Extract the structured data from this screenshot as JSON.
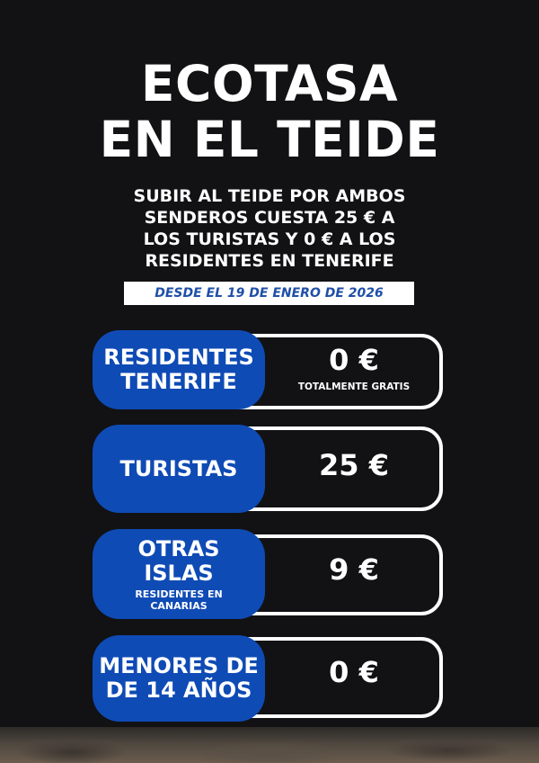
{
  "header": {
    "title_line1": "ECOTASA",
    "title_line2": "EN EL TEIDE",
    "subtitle_lines": [
      "SUBIR AL TEIDE POR AMBOS",
      "SENDEROS CUESTA 25 € A",
      "LOS TURISTAS Y 0 € A LOS",
      "RESIDENTES EN TENERIFE"
    ],
    "date": "DESDE EL 19 DE ENERO DE 2026"
  },
  "rates": [
    {
      "label_lines": [
        "RESIDENTES",
        "TENERIFE"
      ],
      "sublabel": "",
      "price": "0 €",
      "note": "TOTALMENTE GRATIS"
    },
    {
      "label_lines": [
        "TURISTAS"
      ],
      "sublabel": "",
      "price": "25 €",
      "note": ""
    },
    {
      "label_lines": [
        "OTRAS",
        "ISLAS"
      ],
      "sublabel_lines": [
        "RESIDENTES EN",
        "CANARIAS"
      ],
      "price": "9 €",
      "note": ""
    },
    {
      "label_lines": [
        "MENORES DE",
        "DE 14 AÑOS"
      ],
      "sublabel": "",
      "price": "0 €",
      "note": ""
    }
  ],
  "colors": {
    "background": "#121214",
    "accent_blue": "#0f4bb5",
    "date_text": "#1f4fa8",
    "text": "#ffffff"
  }
}
